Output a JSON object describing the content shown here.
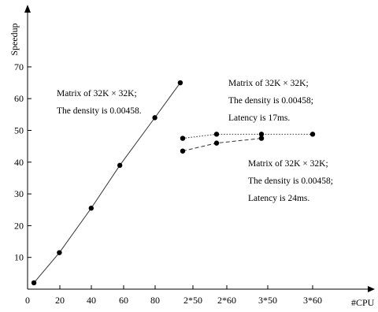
{
  "chart_data": {
    "type": "line",
    "ylabel": "Speedup",
    "xlabel": "#CPU",
    "ylim": [
      0,
      80
    ],
    "yticks": [
      10,
      20,
      30,
      40,
      50,
      60,
      70
    ],
    "xticks": [
      "0",
      "20",
      "40",
      "60",
      "80",
      "2*50",
      "2*60",
      "3*50",
      "3*60"
    ],
    "grid": false,
    "series": [
      {
        "annotation": [
          "Matrix of 32K × 32K;",
          "The density is 0.00458."
        ],
        "line_style": "solid",
        "points": [
          {
            "x": "4",
            "y": 2
          },
          {
            "x": "20",
            "y": 11.5
          },
          {
            "x": "40",
            "y": 25.5
          },
          {
            "x": "58",
            "y": 39
          },
          {
            "x": "80",
            "y": 54
          },
          {
            "x": "96",
            "y": 65
          }
        ]
      },
      {
        "annotation": [
          "Matrix of 32K × 32K;",
          "The density is 0.00458;",
          "Latency is 17ms."
        ],
        "line_style": "dotted",
        "points": [
          {
            "x": "2*50",
            "y": 47.5
          },
          {
            "x": "2*60",
            "y": 48.8
          },
          {
            "x": "3*50",
            "y": 48.8
          },
          {
            "x": "3*60",
            "y": 48.8
          }
        ]
      },
      {
        "annotation": [
          "Matrix of 32K × 32K;",
          "The density is 0.00458;",
          "Latency is 24ms."
        ],
        "line_style": "dashed",
        "points": [
          {
            "x": "2*50",
            "y": 43.5
          },
          {
            "x": "2*60",
            "y": 46
          },
          {
            "x": "3*50",
            "y": 47.5
          }
        ]
      }
    ]
  }
}
